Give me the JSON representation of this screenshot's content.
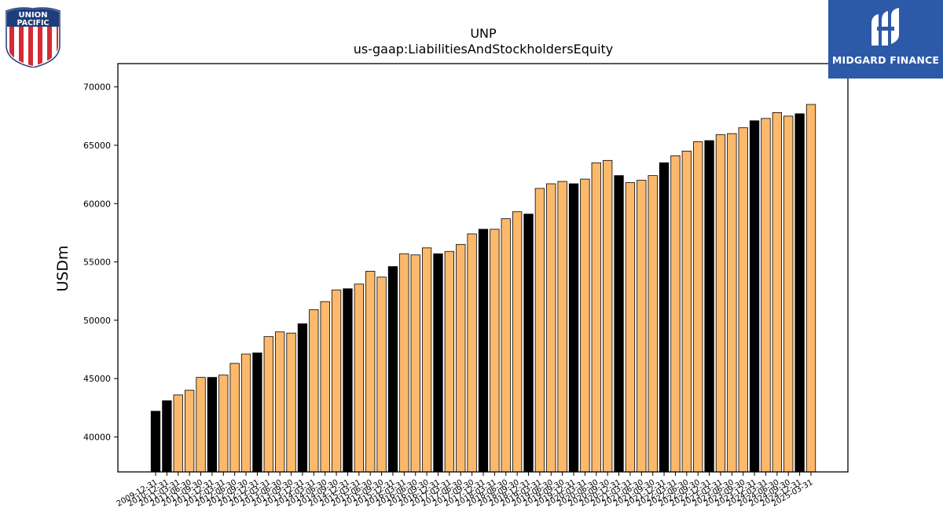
{
  "header": {
    "ticker": "UNP",
    "metric": "us-gaap:LiabilitiesAndStockholdersEquity"
  },
  "logos": {
    "left": {
      "name": "union-pacific-logo",
      "text_top": "UNION",
      "text_bottom": "PACIFIC"
    },
    "right": {
      "name": "midgard-finance-logo",
      "text": "MIDGARD FINANCE",
      "background": "#2d5aa8"
    }
  },
  "chart_data": {
    "type": "bar",
    "title": "UNP",
    "subtitle": "us-gaap:LiabilitiesAndStockholdersEquity",
    "xlabel": "",
    "ylabel": "USDm",
    "ylim": [
      37000,
      72000
    ],
    "yticks": [
      40000,
      45000,
      50000,
      55000,
      60000,
      65000,
      70000
    ],
    "colors": {
      "fiscal_year_end": "#000000",
      "quarter": "#fdb96b",
      "edge": "#000000"
    },
    "categories": [
      "2009-12-31",
      "2010-12-31",
      "2011-03-31",
      "2011-06-30",
      "2011-09-30",
      "2011-12-31",
      "2012-03-31",
      "2012-06-30",
      "2012-09-30",
      "2012-12-31",
      "2013-03-31",
      "2013-06-30",
      "2013-09-30",
      "2013-12-31",
      "2014-03-31",
      "2014-06-30",
      "2014-09-30",
      "2014-12-31",
      "2015-03-31",
      "2015-06-30",
      "2015-09-30",
      "2015-12-31",
      "2016-03-31",
      "2016-06-30",
      "2016-09-30",
      "2016-12-31",
      "2017-03-31",
      "2017-06-30",
      "2017-09-30",
      "2017-12-31",
      "2018-03-31",
      "2018-06-30",
      "2018-09-30",
      "2018-12-31",
      "2019-03-31",
      "2019-06-30",
      "2019-09-30",
      "2019-12-31",
      "2020-03-31",
      "2020-06-30",
      "2020-09-30",
      "2020-12-31",
      "2021-03-31",
      "2021-06-30",
      "2021-09-30",
      "2021-12-31",
      "2022-03-31",
      "2022-06-30",
      "2022-09-30",
      "2022-12-31",
      "2023-03-31",
      "2023-06-30",
      "2023-09-30",
      "2023-12-31",
      "2024-03-31",
      "2024-06-30",
      "2024-09-30",
      "2024-12-31",
      "2025-03-31"
    ],
    "values": [
      42200,
      43100,
      43600,
      44000,
      45100,
      45100,
      45300,
      46300,
      47100,
      47200,
      48600,
      49000,
      48900,
      49700,
      50900,
      51600,
      52600,
      52700,
      53100,
      54200,
      53700,
      54600,
      55700,
      55600,
      56200,
      55700,
      55900,
      56500,
      57400,
      57800,
      57800,
      58700,
      59300,
      59100,
      61300,
      61700,
      61900,
      61700,
      62100,
      63500,
      63700,
      62400,
      61800,
      62000,
      62400,
      63500,
      64100,
      64500,
      65300,
      65400,
      65900,
      66000,
      66500,
      67100,
      67300,
      67800,
      67500,
      67700,
      68500
    ],
    "fiscal_year_end": [
      true,
      true,
      false,
      false,
      false,
      true,
      false,
      false,
      false,
      true,
      false,
      false,
      false,
      true,
      false,
      false,
      false,
      true,
      false,
      false,
      false,
      true,
      false,
      false,
      false,
      true,
      false,
      false,
      false,
      true,
      false,
      false,
      false,
      true,
      false,
      false,
      false,
      true,
      false,
      false,
      false,
      true,
      false,
      false,
      false,
      true,
      false,
      false,
      false,
      true,
      false,
      false,
      false,
      true,
      false,
      false,
      false,
      true,
      false
    ],
    "grid": false,
    "legend": "none"
  }
}
